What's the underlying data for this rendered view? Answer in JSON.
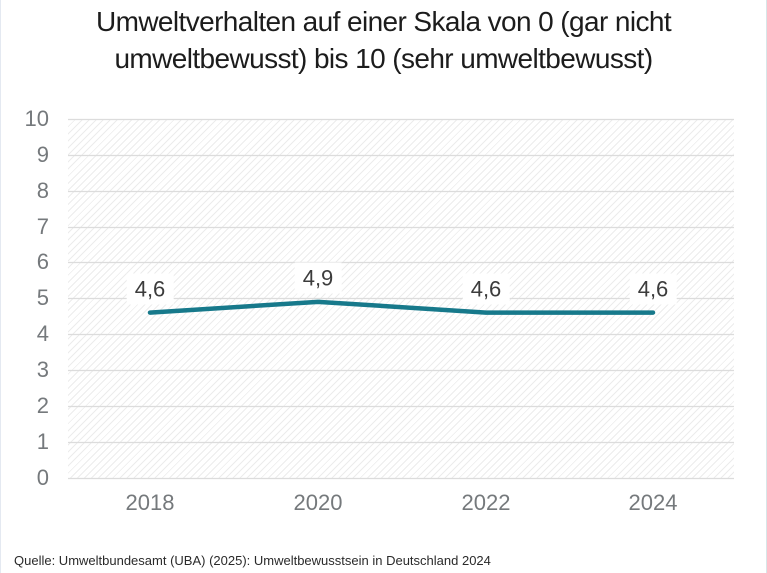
{
  "header": {
    "title_lines": [
      "Umweltverhalten auf einer Skala von 0 (gar nicht",
      "umweltbewusst) bis 10 (sehr umweltbewusst)"
    ]
  },
  "chart_data": {
    "type": "line",
    "title": "Umweltverhalten auf einer Skala von 0 (gar nicht umweltbewusst) bis 10 (sehr umweltbewusst)",
    "categories": [
      "2018",
      "2020",
      "2022",
      "2024"
    ],
    "values": [
      4.6,
      4.9,
      4.6,
      4.6
    ],
    "value_labels": [
      "4,6",
      "4,9",
      "4,6",
      "4,6"
    ],
    "yticks": [
      "10",
      "9",
      "8",
      "7",
      "6",
      "5",
      "4",
      "3",
      "2",
      "1",
      "0"
    ],
    "ylim": [
      0,
      10
    ],
    "xlabel": "",
    "ylabel": "",
    "grid": "horizontal gridlines at every integer",
    "legend": "none",
    "plot_background": "white with light diagonal hatch"
  },
  "colors": {
    "line": "#17798b",
    "grid": "#dcdcdc",
    "hatch": "#ececec",
    "axis_text": "#75797c",
    "value_label_text": "#3c3c3c",
    "title_text": "#1c1c1c",
    "label_background": "#ffffff"
  },
  "footer": {
    "source": "Quelle: Umweltbundesamt (UBA) (2025): Umweltbewusstsein in Deutschland 2024"
  }
}
